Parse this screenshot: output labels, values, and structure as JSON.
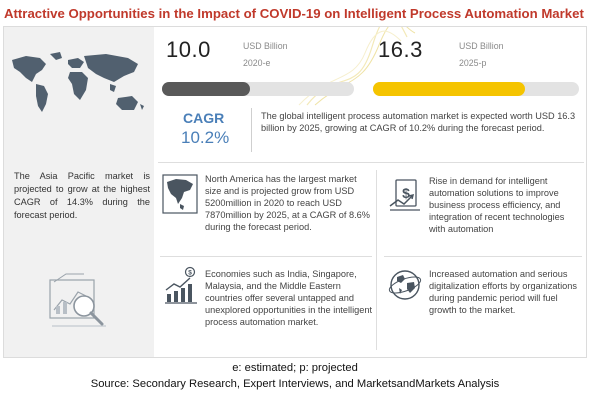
{
  "title": "Attractive Opportunities in the Impact of COVID-19 on Intelligent Process Automation Market",
  "chart_data": {
    "type": "bar",
    "categories": [
      "2020-e",
      "2025-p"
    ],
    "values": [
      10.0,
      16.3
    ],
    "value_labels": [
      "10.0",
      "16.3"
    ],
    "units": [
      "USD Billion",
      "USD Billion"
    ],
    "colors": [
      "#595959",
      "#f5c400"
    ],
    "xlim": [
      0,
      16.3
    ]
  },
  "cagr": {
    "label": "CAGR",
    "value": "10.2%"
  },
  "summary": "The global intelligent process automation market is expected worth USD 16.3 billion by 2025, growing at CAGR of 10.2% during the forecast period.",
  "left_panel": {
    "asia_text": "The Asia Pacific market is projected to grow at the highest CAGR of 14.3% during the forecast period."
  },
  "points": {
    "north_america": "North America has the largest market size and is projected grow from USD 5200million in 2020 to reach USD 7870million by 2025, at a CAGR of 8.6% during the forecast period.",
    "rise_in_demand": "Rise in demand for intelligent automation solutions to improve business process efficiency, and integration of recent technologies with automation",
    "economies": "Economies such as India, Singapore, Malaysia, and the Middle Eastern countries offer several untapped and unexplored opportunities in the intelligent process automation market.",
    "digitalization": "Increased automation and serious digitalization efforts by organizations during pandemic period will fuel growth to the market."
  },
  "footnotes": {
    "legend": "e: estimated; p: projected",
    "source": "Source: Secondary Research, Expert Interviews, and MarketsandMarkets Analysis"
  },
  "icons": {
    "map": "world-map-icon",
    "analytics": "analytics-magnifier-icon",
    "north_america": "north-america-map-icon",
    "money": "money-growth-icon",
    "growth": "growth-chart-icon",
    "globe": "globe-icon"
  },
  "colors": {
    "title": "#c0392b",
    "accent_blue": "#4a7fb8",
    "bar_2020": "#595959",
    "bar_2025": "#f5c400"
  }
}
